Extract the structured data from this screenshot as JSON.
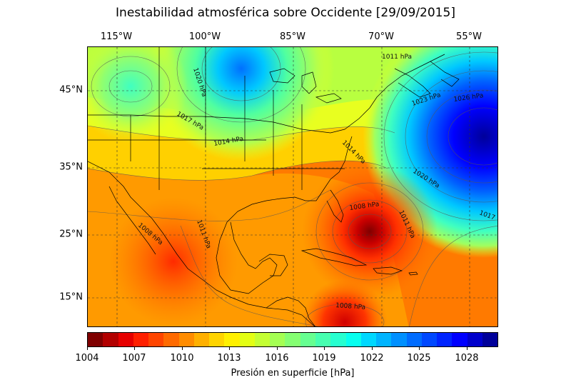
{
  "title": "Inestabilidad atmosférica sobre Occidente [29/09/2015]",
  "longitude_labels": [
    "115°W",
    "100°W",
    "85°W",
    "70°W",
    "55°W"
  ],
  "latitude_labels": [
    "45°N",
    "35°N",
    "25°N",
    "15°N"
  ],
  "colorbar": {
    "label": "Presión en superficie [hPa]",
    "tick_labels": [
      "1004",
      "1007",
      "1010",
      "1013",
      "1016",
      "1019",
      "1022",
      "1025",
      "1028"
    ],
    "colors": [
      "#7f0000",
      "#b20000",
      "#e60000",
      "#ff2000",
      "#ff4500",
      "#ff6a00",
      "#ff8c00",
      "#ffb000",
      "#ffd400",
      "#fff000",
      "#e3ff14",
      "#c4ff33",
      "#a4ff53",
      "#85ff72",
      "#66ff91",
      "#47ffb0",
      "#27ffd0",
      "#08ffef",
      "#00d8ff",
      "#00b4ff",
      "#0090ff",
      "#006cff",
      "#0048ff",
      "#0024ff",
      "#0000ff",
      "#0000cc",
      "#00009a"
    ]
  },
  "contour_labels": [
    "1011 hPa",
    "1020 hPa",
    "1023 hPa",
    "1026 hPa",
    "1017 hPa",
    "1014 hPa",
    "1014 hPa",
    "1020 hPa",
    "1017",
    "1008 hPa",
    "1011 hPa",
    "1008 hPa",
    "1011 hPa",
    "1008 hPa"
  ]
}
